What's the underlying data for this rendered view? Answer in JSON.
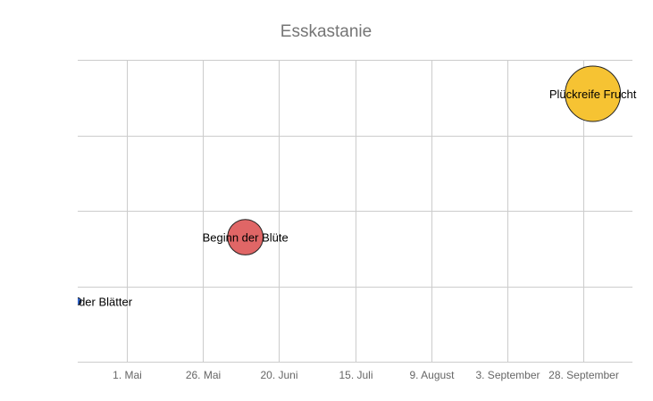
{
  "chart_data": {
    "type": "scatter",
    "title": "Esskastanie",
    "xlabel": "",
    "ylabel": "",
    "x_axis": {
      "type": "date",
      "min": "2021-04-15",
      "max": "2021-10-14",
      "ticks": [
        {
          "date": "2021-05-01",
          "label": "1. Mai"
        },
        {
          "date": "2021-05-26",
          "label": "26. Mai"
        },
        {
          "date": "2021-06-20",
          "label": "20. Juni"
        },
        {
          "date": "2021-07-15",
          "label": "15. Juli"
        },
        {
          "date": "2021-08-09",
          "label": "9. August"
        },
        {
          "date": "2021-09-03",
          "label": "3. September"
        },
        {
          "date": "2021-09-28",
          "label": "28. September"
        }
      ]
    },
    "y_axis": {
      "min": 0,
      "max": 4,
      "gridlines": [
        0,
        1,
        2,
        3,
        4
      ],
      "tick_labels": false
    },
    "grid": true,
    "legend": "none",
    "series": [
      {
        "label": "Entfaltung der Blätter",
        "x": "2021-04-15",
        "y": 0.8,
        "size": 1,
        "color": "#3366cc"
      },
      {
        "label": "Beginn der Blüte",
        "x": "2021-06-09",
        "y": 1.65,
        "size": 3,
        "color": "#e06666"
      },
      {
        "label": "Plückreife Frucht",
        "x": "2021-10-01",
        "y": 3.55,
        "size": 6,
        "color": "#f6c333"
      }
    ]
  }
}
